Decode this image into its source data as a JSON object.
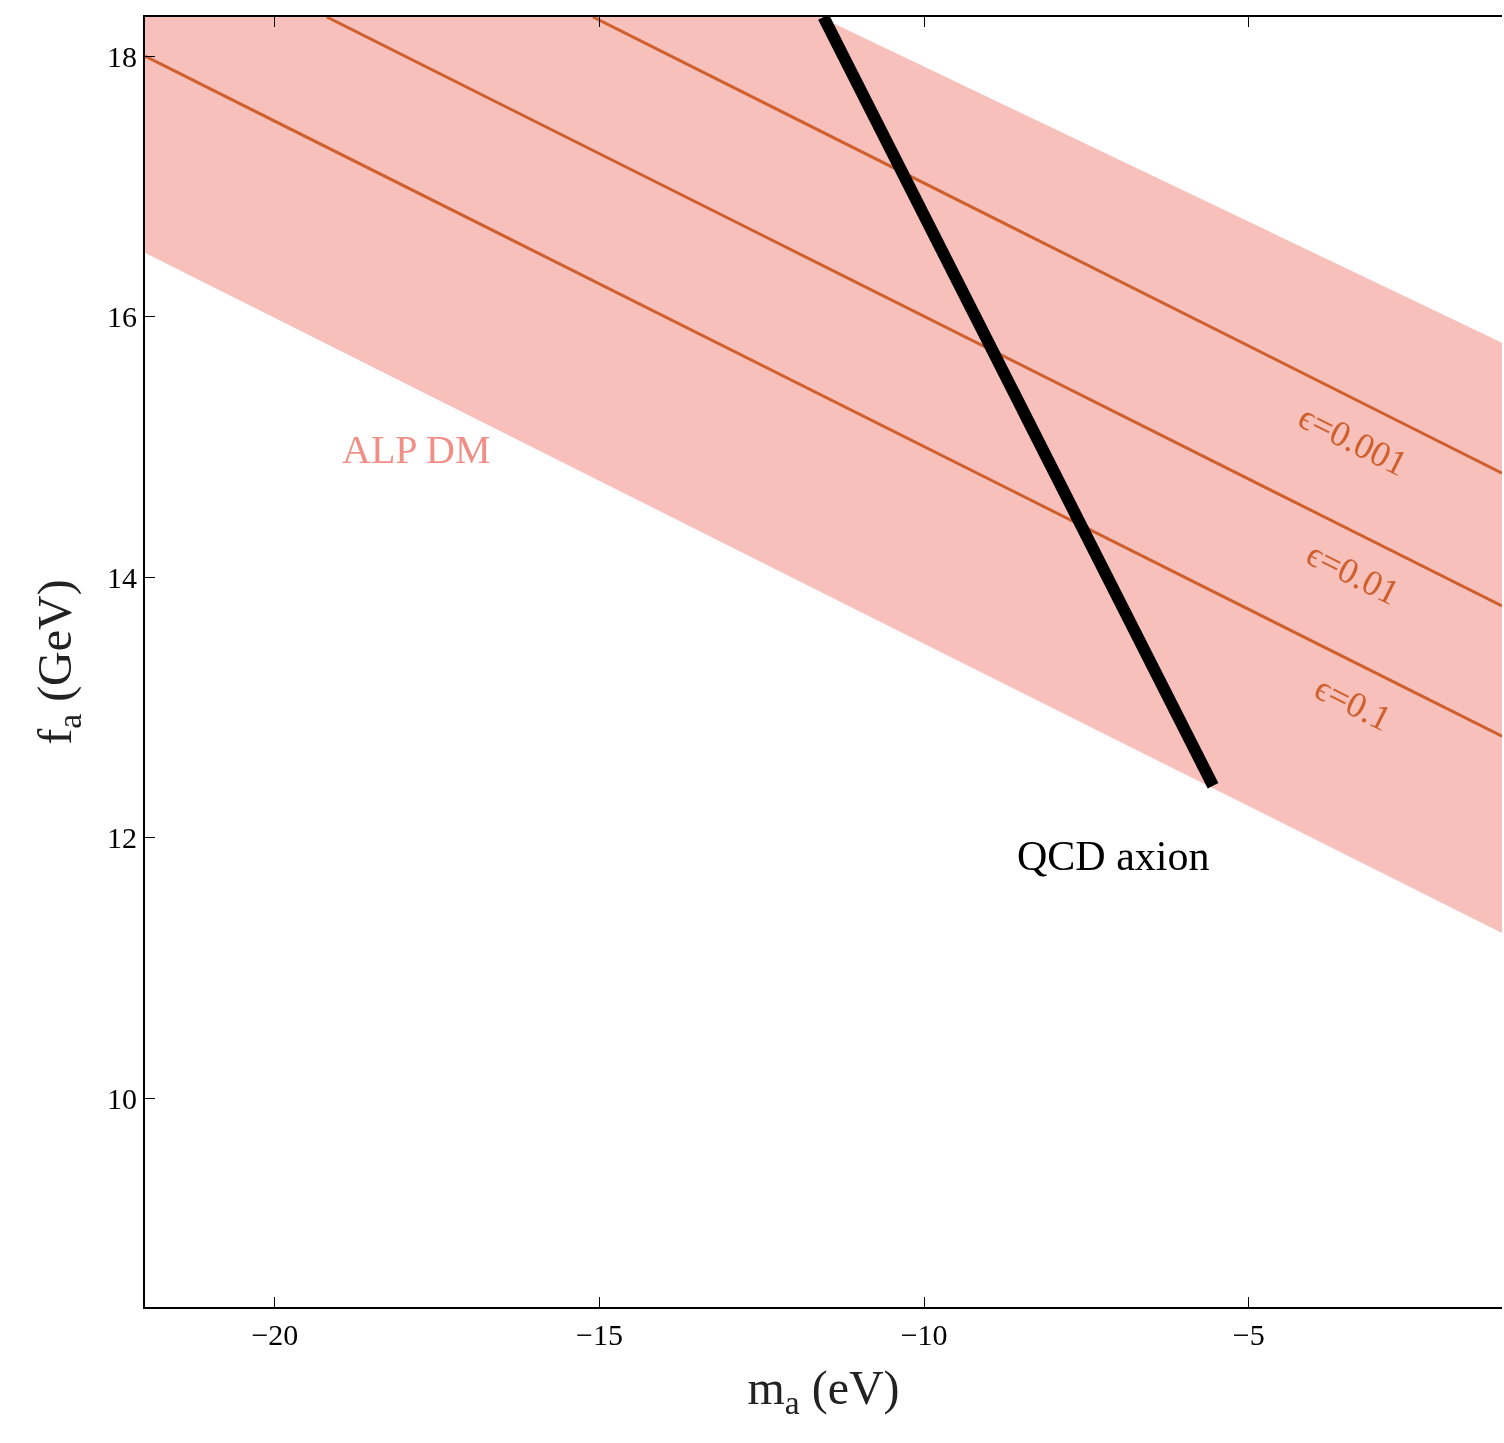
{
  "chart_data": {
    "type": "line",
    "xlabel": "m$_{a}$ (eV)",
    "ylabel": "f$_{a}$ (GeV)",
    "xlim": [
      -22,
      -1.1
    ],
    "ylim": [
      8.4,
      18.3
    ],
    "xticks": [
      {
        "value": -20,
        "label": "−20"
      },
      {
        "value": -15,
        "label": "−15"
      },
      {
        "value": -10,
        "label": "−10"
      },
      {
        "value": -5,
        "label": "−5"
      }
    ],
    "yticks": [
      10,
      12,
      14,
      16,
      18
    ],
    "grid": false,
    "legend": false,
    "marker": "none",
    "line_style": "solid",
    "series": [
      {
        "type": "area",
        "name": "ALP DM",
        "color": "#f08f86",
        "x": [
          -22,
          -11.6,
          -1.1
        ],
        "values": [
          null,
          null,
          null
        ],
        "lower": [
          16.49,
          13.89,
          11.27
        ],
        "upper": [
          18.3,
          18.3,
          15.8
        ]
      },
      {
        "name": "ϵ=0.1",
        "color": "#cf5f2c",
        "x": [
          -22,
          -1.1
        ],
        "values": [
          18.0,
          12.78
        ]
      },
      {
        "name": "ϵ=0.01",
        "color": "#cf5f2c",
        "x": [
          -19.2,
          -1.1
        ],
        "values": [
          18.3,
          13.78
        ]
      },
      {
        "name": "ϵ=0.001",
        "color": "#cf5f2c",
        "x": [
          -15.1,
          -1.1
        ],
        "values": [
          18.3,
          14.8
        ]
      },
      {
        "name": "QCD axion",
        "color": "#000000",
        "x": [
          -11.55,
          -5.55
        ],
        "values": [
          18.3,
          12.4
        ]
      }
    ]
  }
}
